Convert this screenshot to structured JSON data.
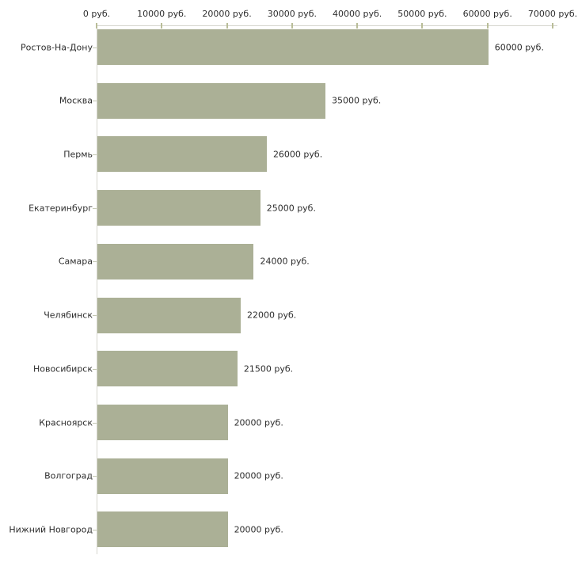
{
  "chart_data": {
    "type": "bar",
    "orientation": "horizontal",
    "title": "",
    "xlabel": "",
    "ylabel": "",
    "unit": "руб.",
    "categories": [
      "Ростов-На-Дону",
      "Москва",
      "Пермь",
      "Екатеринбург",
      "Самара",
      "Челябинск",
      "Новосибирск",
      "Красноярск",
      "Волгоград",
      "Нижний Новгород"
    ],
    "values": [
      60000,
      35000,
      26000,
      25000,
      24000,
      22000,
      21500,
      20000,
      20000,
      20000
    ],
    "value_labels": [
      "60000 руб.",
      "35000 руб.",
      "26000 руб.",
      "25000 руб.",
      "24000 руб.",
      "22000 руб.",
      "21500 руб.",
      "20000 руб.",
      "20000 руб.",
      "20000 руб."
    ],
    "x_ticks": [
      0,
      10000,
      20000,
      30000,
      40000,
      50000,
      60000,
      70000
    ],
    "x_tick_labels": [
      "0 руб.",
      "10000 руб.",
      "20000 руб.",
      "30000 руб.",
      "40000 руб.",
      "50000 руб.",
      "60000 руб.",
      "70000 руб."
    ],
    "xlim": [
      0,
      70000
    ],
    "grid": false,
    "legend": false,
    "colors": {
      "bar": "#abb096",
      "axis_line": "#d6d6ce",
      "x_tick": "#b9bd98",
      "y_tick": "#c3c7b2",
      "text": "#2e2e2e",
      "background": "#ffffff"
    }
  }
}
